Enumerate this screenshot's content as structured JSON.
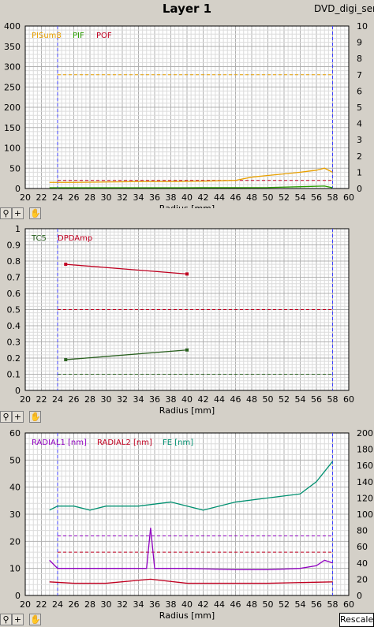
{
  "header": {
    "title": "Layer 1",
    "filename": "DVD_digi_serv"
  },
  "toolbar": {
    "zoom_icon": "zoom-icon",
    "crosshair_icon": "crosshair-icon",
    "pan_icon": "hand-pan-icon"
  },
  "rescale_button": "Rescale",
  "chart_data": [
    {
      "type": "line",
      "xlabel": "Radius [mm]",
      "xlim": [
        20,
        60
      ],
      "xticks": [
        20,
        22,
        24,
        26,
        28,
        30,
        32,
        34,
        36,
        38,
        40,
        42,
        44,
        46,
        48,
        50,
        52,
        54,
        56,
        58,
        60
      ],
      "ylim": [
        0,
        400
      ],
      "yticks": [
        0,
        50,
        100,
        150,
        200,
        250,
        300,
        350,
        400
      ],
      "y2lim": [
        0,
        10
      ],
      "y2ticks": [
        0,
        1,
        2,
        3,
        4,
        5,
        6,
        7,
        8,
        9,
        10
      ],
      "grid": true,
      "legend_position": "top-left",
      "vertical_markers": [
        24,
        58
      ],
      "series": [
        {
          "name": "PISum8",
          "color": "#e8a000",
          "axis": "left",
          "x": [
            23,
            26,
            30,
            34,
            38,
            42,
            46,
            48,
            50,
            52,
            54,
            56,
            57,
            58
          ],
          "values": [
            15,
            15,
            16,
            17,
            17,
            18,
            20,
            28,
            32,
            36,
            40,
            45,
            50,
            40
          ]
        },
        {
          "name": "PIF",
          "color": "#2a9d00",
          "axis": "right",
          "x": [
            23,
            30,
            40,
            50,
            57,
            58
          ],
          "values": [
            0.05,
            0.05,
            0.05,
            0.06,
            0.15,
            0.05
          ]
        },
        {
          "name": "POF",
          "color": "#c00020",
          "axis": "left",
          "x": [],
          "values": []
        }
      ],
      "thresholds": [
        {
          "value": 280,
          "color": "#e8a000"
        },
        {
          "value": 20,
          "color": "#c00020"
        }
      ]
    },
    {
      "type": "line",
      "xlabel": "Radius [mm]",
      "xlim": [
        20,
        60
      ],
      "xticks": [
        20,
        22,
        24,
        26,
        28,
        30,
        32,
        34,
        36,
        38,
        40,
        42,
        44,
        46,
        48,
        50,
        52,
        54,
        56,
        58,
        60
      ],
      "ylim": [
        0,
        1
      ],
      "yticks": [
        0,
        0.1,
        0.2,
        0.3,
        0.4,
        0.5,
        0.6,
        0.7,
        0.8,
        0.9,
        1
      ],
      "grid": true,
      "legend_position": "top-left",
      "vertical_markers": [
        24,
        58
      ],
      "series": [
        {
          "name": "TC5",
          "color": "#2a6020",
          "x": [
            25,
            40
          ],
          "values": [
            0.19,
            0.25
          ]
        },
        {
          "name": "DPDAmp",
          "color": "#c00020",
          "x": [
            25,
            40
          ],
          "values": [
            0.78,
            0.72
          ]
        }
      ],
      "thresholds": [
        {
          "value": 0.5,
          "color": "#c00020"
        },
        {
          "value": 0.1,
          "color": "#2a6020"
        }
      ]
    },
    {
      "type": "line",
      "xlabel": "Radius [mm]",
      "xlim": [
        20,
        60
      ],
      "xticks": [
        20,
        22,
        24,
        26,
        28,
        30,
        32,
        34,
        36,
        38,
        40,
        42,
        44,
        46,
        48,
        50,
        52,
        54,
        56,
        58,
        60
      ],
      "ylim": [
        0,
        60
      ],
      "yticks": [
        0,
        10,
        20,
        30,
        40,
        50,
        60
      ],
      "y2lim": [
        0,
        200
      ],
      "y2ticks": [
        0,
        20,
        40,
        60,
        80,
        100,
        120,
        140,
        160,
        180,
        200
      ],
      "grid": true,
      "legend_position": "top-left",
      "vertical_markers": [
        24,
        58
      ],
      "series": [
        {
          "name": "RADIAL1 [nm]",
          "color": "#9000c0",
          "axis": "left",
          "x": [
            23,
            24,
            26,
            30,
            35,
            35.5,
            36,
            40,
            46,
            50,
            54,
            56,
            57,
            58
          ],
          "values": [
            13,
            10,
            10,
            10,
            10,
            25,
            10,
            10,
            9.5,
            9.5,
            10,
            11,
            13,
            12
          ]
        },
        {
          "name": "RADIAL2 [nm]",
          "color": "#c00020",
          "axis": "left",
          "x": [
            23,
            26,
            30,
            35.5,
            40,
            50,
            58
          ],
          "values": [
            5,
            4.5,
            4.5,
            6,
            4.5,
            4.5,
            5
          ]
        },
        {
          "name": "FE [nm]",
          "color": "#009070",
          "axis": "right",
          "x": [
            23,
            24,
            26,
            28,
            30,
            34,
            38,
            42,
            46,
            50,
            54,
            56,
            58
          ],
          "values": [
            105,
            110,
            110,
            105,
            110,
            110,
            115,
            105,
            115,
            120,
            125,
            140,
            165
          ]
        }
      ],
      "thresholds": [
        {
          "value": 22,
          "color": "#9000c0"
        },
        {
          "value": 16,
          "color": "#c00020"
        }
      ]
    }
  ]
}
